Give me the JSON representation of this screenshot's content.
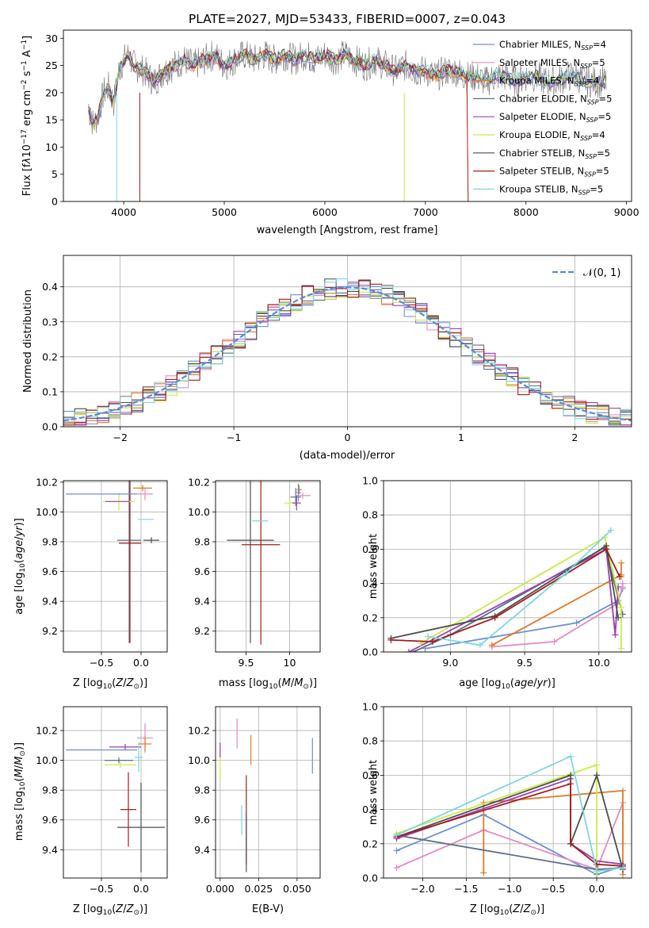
{
  "title": "PLATE=2027, MJD=53433, FIBERID=0007, z=0.043",
  "series": [
    {
      "name": "Chabrier MILES, N_SSP=4",
      "color": "#6a8fd8"
    },
    {
      "name": "Salpeter MILES, N_SSP=5",
      "color": "#e68ac3"
    },
    {
      "name": "Kroupa MILES, N_SSP=4",
      "color": "#e07b27"
    },
    {
      "name": "Chabrier ELODIE, N_SSP=5",
      "color": "#5b6f86"
    },
    {
      "name": "Salpeter ELODIE, N_SSP=5",
      "color": "#9b3fb5"
    },
    {
      "name": "Kroupa ELODIE, N_SSP=4",
      "color": "#c8ec46"
    },
    {
      "name": "Chabrier STELIB, N_SSP=5",
      "color": "#4d4d4d"
    },
    {
      "name": "Salpeter STELIB, N_SSP=5",
      "color": "#a31d1d"
    },
    {
      "name": "Kroupa STELIB, N_SSP=5",
      "color": "#7dd6e0"
    }
  ],
  "chart_data": [
    {
      "type": "line",
      "id": "spectrum",
      "title": "PLATE=2027, MJD=53433, FIBERID=0007, z=0.043",
      "xlabel": "wavelength [Angstrom, rest frame]",
      "ylabel": "Flux [f_λ 10^-17 erg cm^-2 s^-1 A^-1]",
      "xlim": [
        3400,
        9050
      ],
      "ylim": [
        0,
        31.5
      ],
      "xticks": [
        4000,
        5000,
        6000,
        7000,
        8000,
        9000
      ],
      "yticks": [
        0,
        5,
        10,
        15,
        20,
        25,
        30
      ],
      "legend": "top-right",
      "x": [
        3650,
        3700,
        3750,
        3800,
        3850,
        3900,
        3950,
        4000,
        4050,
        4100,
        4200,
        4300,
        4400,
        4500,
        4600,
        4700,
        4800,
        4900,
        5000,
        5100,
        5200,
        5300,
        5400,
        5500,
        5600,
        5700,
        5800,
        5900,
        6000,
        6100,
        6200,
        6300,
        6400,
        6500,
        6600,
        6700,
        6800,
        6900,
        7000,
        7100,
        7200,
        7300,
        7400,
        7500,
        7600,
        7700,
        7800,
        7900,
        8000,
        8100,
        8200,
        8300,
        8400,
        8500,
        8600,
        8700,
        8800
      ],
      "flux": [
        17,
        14,
        16,
        20,
        21,
        18,
        24,
        26,
        27,
        25,
        24,
        22,
        24,
        25,
        26,
        25,
        26,
        27,
        25,
        26,
        27,
        26,
        27,
        26,
        27,
        26,
        27,
        26,
        27,
        26,
        27,
        26,
        25,
        26,
        25,
        24,
        25,
        24,
        24,
        23,
        24,
        24,
        23,
        23,
        22,
        23,
        23,
        22,
        23,
        23,
        22,
        22,
        23,
        23,
        22,
        22,
        22
      ]
    },
    {
      "type": "bar",
      "id": "residuals",
      "xlabel": "(data-model)/error",
      "ylabel": "Normed distribution",
      "xlim": [
        -2.5,
        2.5
      ],
      "ylim": [
        0,
        0.49
      ],
      "xticks": [
        -2,
        -1,
        0,
        1,
        2
      ],
      "yticks": [
        0.0,
        0.1,
        0.2,
        0.3,
        0.4
      ],
      "grid": true,
      "legend": "top-right",
      "reference_curve": "N(0,1)",
      "reference_label": "𝒩(0, 1)",
      "bin_width": 0.1
    },
    {
      "type": "scatter",
      "id": "age-vs-Z",
      "xlabel": "Z [log10(Z/Z⊙)]",
      "ylabel": "age [log10(age/yr)]",
      "xlim": [
        -0.98,
        0.33
      ],
      "ylim": [
        9.06,
        10.21
      ],
      "xticks": [
        -0.5,
        0.0
      ],
      "yticks": [
        9.2,
        9.4,
        9.6,
        9.8,
        10.0,
        10.2
      ],
      "points": [
        {
          "x": -0.15,
          "y": 9.81,
          "xerr": 0.15,
          "yerr": 0.69,
          "series": 3
        },
        {
          "x": -0.14,
          "y": 9.79,
          "xerr": 0.14,
          "yerr": 0.67,
          "series": 7
        },
        {
          "x": -0.28,
          "y": 10.07,
          "xerr": 0.2,
          "yerr": 0.06,
          "series": 5
        },
        {
          "x": 0.06,
          "y": 9.95,
          "xerr": 0.1,
          "yerr": 0.0,
          "series": 8
        },
        {
          "x": 0.13,
          "y": 9.81,
          "xerr": 0.1,
          "yerr": 0.02,
          "series": 6
        },
        {
          "x": -0.5,
          "y": 10.12,
          "xerr": 0.45,
          "yerr": 0.0,
          "series": 0
        },
        {
          "x": 0.05,
          "y": 10.12,
          "xerr": 0.1,
          "yerr": 0.04,
          "series": 1
        },
        {
          "x": 0.02,
          "y": 10.16,
          "xerr": 0.12,
          "yerr": 0.02,
          "series": 2
        },
        {
          "x": -0.3,
          "y": 10.07,
          "xerr": 0.15,
          "yerr": 0.0,
          "series": 4
        }
      ]
    },
    {
      "type": "scatter",
      "id": "age-vs-mass",
      "xlabel": "mass [log10(M/M⊙)]",
      "ylabel": "",
      "xlim": [
        9.15,
        10.35
      ],
      "ylim": [
        9.06,
        10.21
      ],
      "xticks": [
        9.5,
        10.0
      ],
      "yticks": [
        9.2,
        9.4,
        9.6,
        9.8,
        10.0,
        10.2
      ],
      "points": [
        {
          "x": 9.55,
          "y": 9.81,
          "xerr": 0.27,
          "yerr": 0.69,
          "series": 6
        },
        {
          "x": 9.67,
          "y": 9.78,
          "xerr": 0.22,
          "yerr": 0.67,
          "series": 7
        },
        {
          "x": 9.66,
          "y": 9.94,
          "xerr": 0.09,
          "yerr": 0.0,
          "series": 8
        },
        {
          "x": 10.0,
          "y": 10.06,
          "xerr": 0.06,
          "yerr": 0.03,
          "series": 5
        },
        {
          "x": 10.07,
          "y": 10.1,
          "xerr": 0.06,
          "yerr": 0.06,
          "series": 3
        },
        {
          "x": 10.11,
          "y": 10.15,
          "xerr": 0.03,
          "yerr": 0.03,
          "series": 2
        },
        {
          "x": 10.15,
          "y": 10.11,
          "xerr": 0.09,
          "yerr": 0.02,
          "series": 1
        },
        {
          "x": 10.1,
          "y": 10.13,
          "xerr": 0.03,
          "yerr": 0.06,
          "series": 0
        },
        {
          "x": 10.08,
          "y": 10.06,
          "xerr": 0.05,
          "yerr": 0.05,
          "series": 4
        }
      ]
    },
    {
      "type": "line",
      "id": "weight-vs-age",
      "xlabel": "age [log10(age/yr)]",
      "ylabel": "mass weight",
      "xlim": [
        8.55,
        10.22
      ],
      "ylim": [
        0.0,
        1.0
      ],
      "xticks": [
        9.0,
        9.5,
        10.0
      ],
      "yticks": [
        0.0,
        0.2,
        0.4,
        0.6,
        0.8,
        1.0
      ],
      "grid": true,
      "series": [
        {
          "s": 0,
          "x": [
            8.83,
            9.85,
            10.13,
            10.16
          ],
          "y": [
            0.02,
            0.17,
            0.3,
            0.37
          ]
        },
        {
          "s": 1,
          "x": [
            9.28,
            9.7,
            10.12,
            10.16,
            10.16
          ],
          "y": [
            0.03,
            0.06,
            0.28,
            0.38,
            0.4
          ]
        },
        {
          "s": 2,
          "x": [
            9.28,
            10.15,
            10.15,
            10.15
          ],
          "y": [
            0.04,
            0.45,
            0.52,
            0.44
          ]
        },
        {
          "s": 3,
          "x": [
            8.75,
            9.0,
            10.04,
            10.16
          ],
          "y": [
            0.0,
            0.1,
            0.61,
            0.22
          ]
        },
        {
          "s": 4,
          "x": [
            8.72,
            10.05,
            10.11,
            10.13
          ],
          "y": [
            0.0,
            0.6,
            0.1,
            0.38
          ]
        },
        {
          "s": 5,
          "x": [
            8.8,
            10.04,
            10.15,
            10.15
          ],
          "y": [
            0.05,
            0.67,
            0.26,
            0.02
          ]
        },
        {
          "s": 6,
          "x": [
            8.6,
            9.3,
            10.05,
            10.13
          ],
          "y": [
            0.08,
            0.21,
            0.62,
            0.2
          ]
        },
        {
          "s": 7,
          "x": [
            8.6,
            8.88,
            9.3,
            10.05,
            10.14
          ],
          "y": [
            0.07,
            0.06,
            0.2,
            0.6,
            0.44
          ]
        },
        {
          "s": 8,
          "x": [
            8.85,
            9.2,
            9.78,
            10.08
          ],
          "y": [
            0.09,
            0.04,
            0.46,
            0.71
          ]
        }
      ]
    },
    {
      "type": "scatter",
      "id": "mass-vs-Z",
      "xlabel": "Z [log10(Z/Z⊙)]",
      "ylabel": "mass [log10(M/M⊙)]",
      "xlim": [
        -0.98,
        0.33
      ],
      "ylim": [
        9.21,
        10.36
      ],
      "xticks": [
        -0.5,
        0.0
      ],
      "yticks": [
        9.4,
        9.6,
        9.8,
        10.0,
        10.2
      ],
      "points": [
        {
          "x": -0.5,
          "y": 10.07,
          "xerr": 0.45,
          "yerr": 0.0,
          "series": 0
        },
        {
          "x": -0.2,
          "y": 10.09,
          "xerr": 0.2,
          "yerr": 0.02,
          "series": 4
        },
        {
          "x": -0.28,
          "y": 10.0,
          "xerr": 0.18,
          "yerr": 0.02,
          "series": 3
        },
        {
          "x": -0.26,
          "y": 9.97,
          "xerr": 0.2,
          "yerr": 0.02,
          "series": 5
        },
        {
          "x": 0.05,
          "y": 10.15,
          "xerr": 0.1,
          "yerr": 0.1,
          "series": 1
        },
        {
          "x": 0.05,
          "y": 10.11,
          "xerr": 0.08,
          "yerr": 0.05,
          "series": 2
        },
        {
          "x": -0.03,
          "y": 10.02,
          "xerr": 0.05,
          "yerr": 0.1,
          "series": 8
        },
        {
          "x": -0.16,
          "y": 9.67,
          "xerr": 0.1,
          "yerr": 0.25,
          "series": 7
        },
        {
          "x": 0.0,
          "y": 9.55,
          "xerr": 0.3,
          "yerr": 0.3,
          "series": 6
        }
      ]
    },
    {
      "type": "scatter",
      "id": "mass-vs-ebv",
      "xlabel": "E(B-V)",
      "ylabel": "",
      "xlim": [
        -0.003,
        0.065
      ],
      "ylim": [
        9.21,
        10.36
      ],
      "xticks": [
        0.0,
        0.025,
        0.05
      ],
      "xticklabels": [
        "0.000",
        "0.025",
        "0.050"
      ],
      "yticks": [
        9.4,
        9.6,
        9.8,
        10.0,
        10.2
      ],
      "points": [
        {
          "x": 0.0,
          "y": 9.97,
          "xerr": 0,
          "yerr": 0.1,
          "series": 5
        },
        {
          "x": 0.0,
          "y": 10.07,
          "xerr": 0,
          "yerr": 0.05,
          "series": 4
        },
        {
          "x": 0.011,
          "y": 10.18,
          "xerr": 0,
          "yerr": 0.1,
          "series": 1
        },
        {
          "x": 0.014,
          "y": 9.6,
          "xerr": 0,
          "yerr": 0.1,
          "series": 8
        },
        {
          "x": 0.017,
          "y": 9.6,
          "xerr": 0,
          "yerr": 0.3,
          "series": 7
        },
        {
          "x": 0.017,
          "y": 9.45,
          "xerr": 0,
          "yerr": 0.2,
          "series": 6
        },
        {
          "x": 0.02,
          "y": 10.07,
          "xerr": 0,
          "yerr": 0.1,
          "series": 2
        },
        {
          "x": 0.06,
          "y": 10.03,
          "xerr": 0,
          "yerr": 0.12,
          "series": 0
        }
      ]
    },
    {
      "type": "line",
      "id": "weight-vs-Z",
      "xlabel": "Z [log10(Z/Z⊙)]",
      "ylabel": "mass weight",
      "xlim": [
        -2.45,
        0.4
      ],
      "ylim": [
        0.0,
        1.0
      ],
      "xticks": [
        -2.0,
        -1.5,
        -1.0,
        -0.5,
        0.0
      ],
      "yticks": [
        0.0,
        0.2,
        0.4,
        0.6,
        0.8,
        1.0
      ],
      "grid": true,
      "series": [
        {
          "s": 0,
          "x": [
            -2.3,
            -1.3,
            0.0,
            0.3
          ],
          "y": [
            0.16,
            0.37,
            0.02,
            0.07
          ]
        },
        {
          "s": 1,
          "x": [
            -2.3,
            -1.3,
            0.0,
            0.3,
            0.3
          ],
          "y": [
            0.06,
            0.28,
            0.05,
            0.44,
            0.2
          ]
        },
        {
          "s": 2,
          "x": [
            -1.3,
            -1.3,
            0.3,
            0.3
          ],
          "y": [
            0.03,
            0.44,
            0.51,
            0.02
          ]
        },
        {
          "s": 3,
          "x": [
            -2.3,
            0.0,
            0.3
          ],
          "y": [
            0.25,
            0.05,
            0.06
          ]
        },
        {
          "s": 4,
          "x": [
            -2.3,
            -0.3,
            -0.3,
            0.0,
            0.3
          ],
          "y": [
            0.23,
            0.58,
            0.2,
            0.1,
            0.08
          ]
        },
        {
          "s": 5,
          "x": [
            -2.3,
            0.0,
            0.0
          ],
          "y": [
            0.26,
            0.66,
            0.03
          ]
        },
        {
          "s": 6,
          "x": [
            -2.3,
            -0.3,
            -0.3,
            0.0,
            0.3
          ],
          "y": [
            0.24,
            0.6,
            0.2,
            0.6,
            0.05
          ]
        },
        {
          "s": 7,
          "x": [
            -2.3,
            -0.3,
            -0.3,
            0.0,
            0.3
          ],
          "y": [
            0.24,
            0.55,
            0.2,
            0.08,
            0.07
          ]
        },
        {
          "s": 8,
          "x": [
            -2.3,
            -0.3,
            0.0,
            0.3
          ],
          "y": [
            0.25,
            0.71,
            0.04,
            0.06
          ]
        }
      ]
    }
  ]
}
